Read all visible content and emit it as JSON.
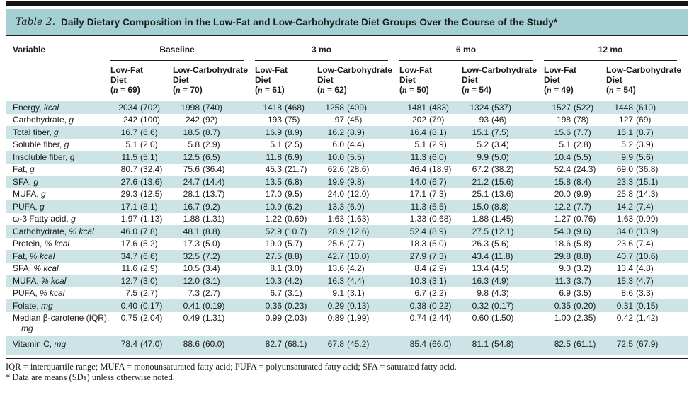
{
  "theme": {
    "teal_header": "#a5d0d3",
    "teal_stripe": "#cde4e7",
    "rule_color": "#1d1d1d"
  },
  "title": {
    "prefix": "Table 2.",
    "text": "Daily Dietary Composition in the Low-Fat and Low-Carbohydrate Diet Groups Over the Course of the Study*"
  },
  "table": {
    "variable_header": "Variable",
    "groups": [
      {
        "label": "Baseline",
        "columns": [
          {
            "name": "Low-Fat Diet",
            "n": "69"
          },
          {
            "name": "Low-Carbohydrate Diet",
            "n": "70"
          }
        ]
      },
      {
        "label": "3 mo",
        "columns": [
          {
            "name": "Low-Fat Diet",
            "n": "61"
          },
          {
            "name": "Low-Carbohydrate Diet",
            "n": "62"
          }
        ]
      },
      {
        "label": "6 mo",
        "columns": [
          {
            "name": "Low-Fat Diet",
            "n": "50"
          },
          {
            "name": "Low-Carbohydrate Diet",
            "n": "54"
          }
        ]
      },
      {
        "label": "12 mo",
        "columns": [
          {
            "name": "Low-Fat Diet",
            "n": "49"
          },
          {
            "name": "Low-Carbohydrate Diet",
            "n": "54"
          }
        ]
      }
    ],
    "rows": [
      {
        "name": "Energy",
        "unit": "kcal",
        "values": [
          "2034 (702)",
          "1998 (740)",
          "1418 (468)",
          "1258 (409)",
          "1481 (483)",
          "1324 (537)",
          "1527 (522)",
          "1448 (610)"
        ]
      },
      {
        "name": "Carbohydrate",
        "unit": "g",
        "values": [
          "242 (100)",
          "242 (92)",
          "193 (75)",
          "97 (45)",
          "202 (79)",
          "93 (46)",
          "198 (78)",
          "127 (69)"
        ]
      },
      {
        "name": "Total fiber",
        "unit": "g",
        "values": [
          "16.7 (6.6)",
          "18.5 (8.7)",
          "16.9 (8.9)",
          "16.2 (8.9)",
          "16.4 (8.1)",
          "15.1 (7.5)",
          "15.6 (7.7)",
          "15.1 (8.7)"
        ]
      },
      {
        "name": "Soluble fiber",
        "unit": "g",
        "values": [
          "5.1 (2.0)",
          "5.8 (2.9)",
          "5.1 (2.5)",
          "6.0 (4.4)",
          "5.1 (2.9)",
          "5.2 (3.4)",
          "5.1 (2.8)",
          "5.2 (3.9)"
        ]
      },
      {
        "name": "Insoluble fiber",
        "unit": "g",
        "values": [
          "11.5 (5.1)",
          "12.5 (6.5)",
          "11.8 (6.9)",
          "10.0 (5.5)",
          "11.3 (6.0)",
          "9.9 (5.0)",
          "10.4 (5.5)",
          "9.9 (5.6)"
        ]
      },
      {
        "name": "Fat",
        "unit": "g",
        "values": [
          "80.7 (32.4)",
          "75.6 (36.4)",
          "45.3 (21.7)",
          "62.6 (28.6)",
          "46.4 (18.9)",
          "67.2 (38.2)",
          "52.4 (24.3)",
          "69.0 (36.8)"
        ]
      },
      {
        "name": "SFA",
        "unit": "g",
        "values": [
          "27.6 (13.6)",
          "24.7 (14.4)",
          "13.5 (6.8)",
          "19.9 (9.8)",
          "14.0 (6.7)",
          "21.2 (15.6)",
          "15.8 (8.4)",
          "23.3 (15.1)"
        ]
      },
      {
        "name": "MUFA",
        "unit": "g",
        "values": [
          "29.3 (12.5)",
          "28.1 (13.7)",
          "17.0 (9.5)",
          "24.0 (12.0)",
          "17.1 (7.3)",
          "25.1 (13.6)",
          "20.0 (9.9)",
          "25.8 (14.3)"
        ]
      },
      {
        "name": "PUFA",
        "unit": "g",
        "values": [
          "17.1 (8.1)",
          "16.7 (9.2)",
          "10.9 (6.2)",
          "13.3 (6.9)",
          "11.3 (5.5)",
          "15.0 (8.8)",
          "12.2 (7.7)",
          "14.2 (7.4)"
        ]
      },
      {
        "name": "ω-3 Fatty acid",
        "unit": "g",
        "values": [
          "1.97 (1.13)",
          "1.88 (1.31)",
          "1.22 (0.69)",
          "1.63 (1.63)",
          "1.33 (0.68)",
          "1.88 (1.45)",
          "1.27 (0.76)",
          "1.63 (0.99)"
        ]
      },
      {
        "name": "Carbohydrate",
        "unit": "% kcal",
        "values": [
          "46.0 (7.8)",
          "48.1 (8.8)",
          "52.9 (10.7)",
          "28.9 (12.6)",
          "52.4 (8.9)",
          "27.5 (12.1)",
          "54.0 (9.6)",
          "34.0 (13.9)"
        ]
      },
      {
        "name": "Protein",
        "unit": "% kcal",
        "values": [
          "17.6 (5.2)",
          "17.3 (5.0)",
          "19.0 (5.7)",
          "25.6 (7.7)",
          "18.3 (5.0)",
          "26.3 (5.6)",
          "18.6 (5.8)",
          "23.6 (7.4)"
        ]
      },
      {
        "name": "Fat",
        "unit": "% kcal",
        "values": [
          "34.7 (6.6)",
          "32.5 (7.2)",
          "27.5 (8.8)",
          "42.7 (10.0)",
          "27.9 (7.3)",
          "43.4 (11.8)",
          "29.8 (8.8)",
          "40.7 (10.6)"
        ]
      },
      {
        "name": "SFA",
        "unit": "% kcal",
        "values": [
          "11.6 (2.9)",
          "10.5 (3.4)",
          "8.1 (3.0)",
          "13.6 (4.2)",
          "8.4 (2.9)",
          "13.4 (4.5)",
          "9.0 (3.2)",
          "13.4 (4.8)"
        ]
      },
      {
        "name": "MUFA",
        "unit": "% kcal",
        "values": [
          "12.7 (3.0)",
          "12.0 (3.1)",
          "10.3 (4.2)",
          "16.3 (4.4)",
          "10.3 (3.1)",
          "16.3 (4.9)",
          "11.3 (3.7)",
          "15.3 (4.7)"
        ]
      },
      {
        "name": "PUFA",
        "unit": "% kcal",
        "values": [
          "7.5 (2.7)",
          "7.3 (2.7)",
          "6.7 (3.1)",
          "9.1 (3.1)",
          "6.7 (2.2)",
          "9.8 (4.3)",
          "6.9 (3.5)",
          "8.6 (3.3)"
        ]
      },
      {
        "name": "Folate",
        "unit": "mg",
        "values": [
          "0.40 (0.17)",
          "0.41 (0.19)",
          "0.36 (0.23)",
          "0.29 (0.13)",
          "0.38 (0.22)",
          "0.32 (0.17)",
          "0.35 (0.20)",
          "0.31 (0.15)"
        ]
      },
      {
        "name": "Median β-carotene (IQR)",
        "unit": "mg",
        "values": [
          "0.75 (2.04)",
          "0.49 (1.31)",
          "0.99 (2.03)",
          "0.89 (1.99)",
          "0.74 (2.44)",
          "0.60 (1.50)",
          "1.00 (2.35)",
          "0.42 (1.42)"
        ]
      },
      {
        "name": "Vitamin C",
        "unit": "mg",
        "values": [
          "78.4 (47.0)",
          "88.6 (60.0)",
          "82.7 (68.1)",
          "67.8 (45.2)",
          "85.4 (66.0)",
          "81.1 (54.8)",
          "82.5 (61.1)",
          "72.5 (67.9)"
        ]
      }
    ]
  },
  "footnotes": [
    "IQR = interquartile range; MUFA = monounsaturated fatty acid; PUFA = polyunsaturated fatty acid; SFA = saturated fatty acid.",
    "* Data are means (SDs) unless otherwise noted."
  ]
}
